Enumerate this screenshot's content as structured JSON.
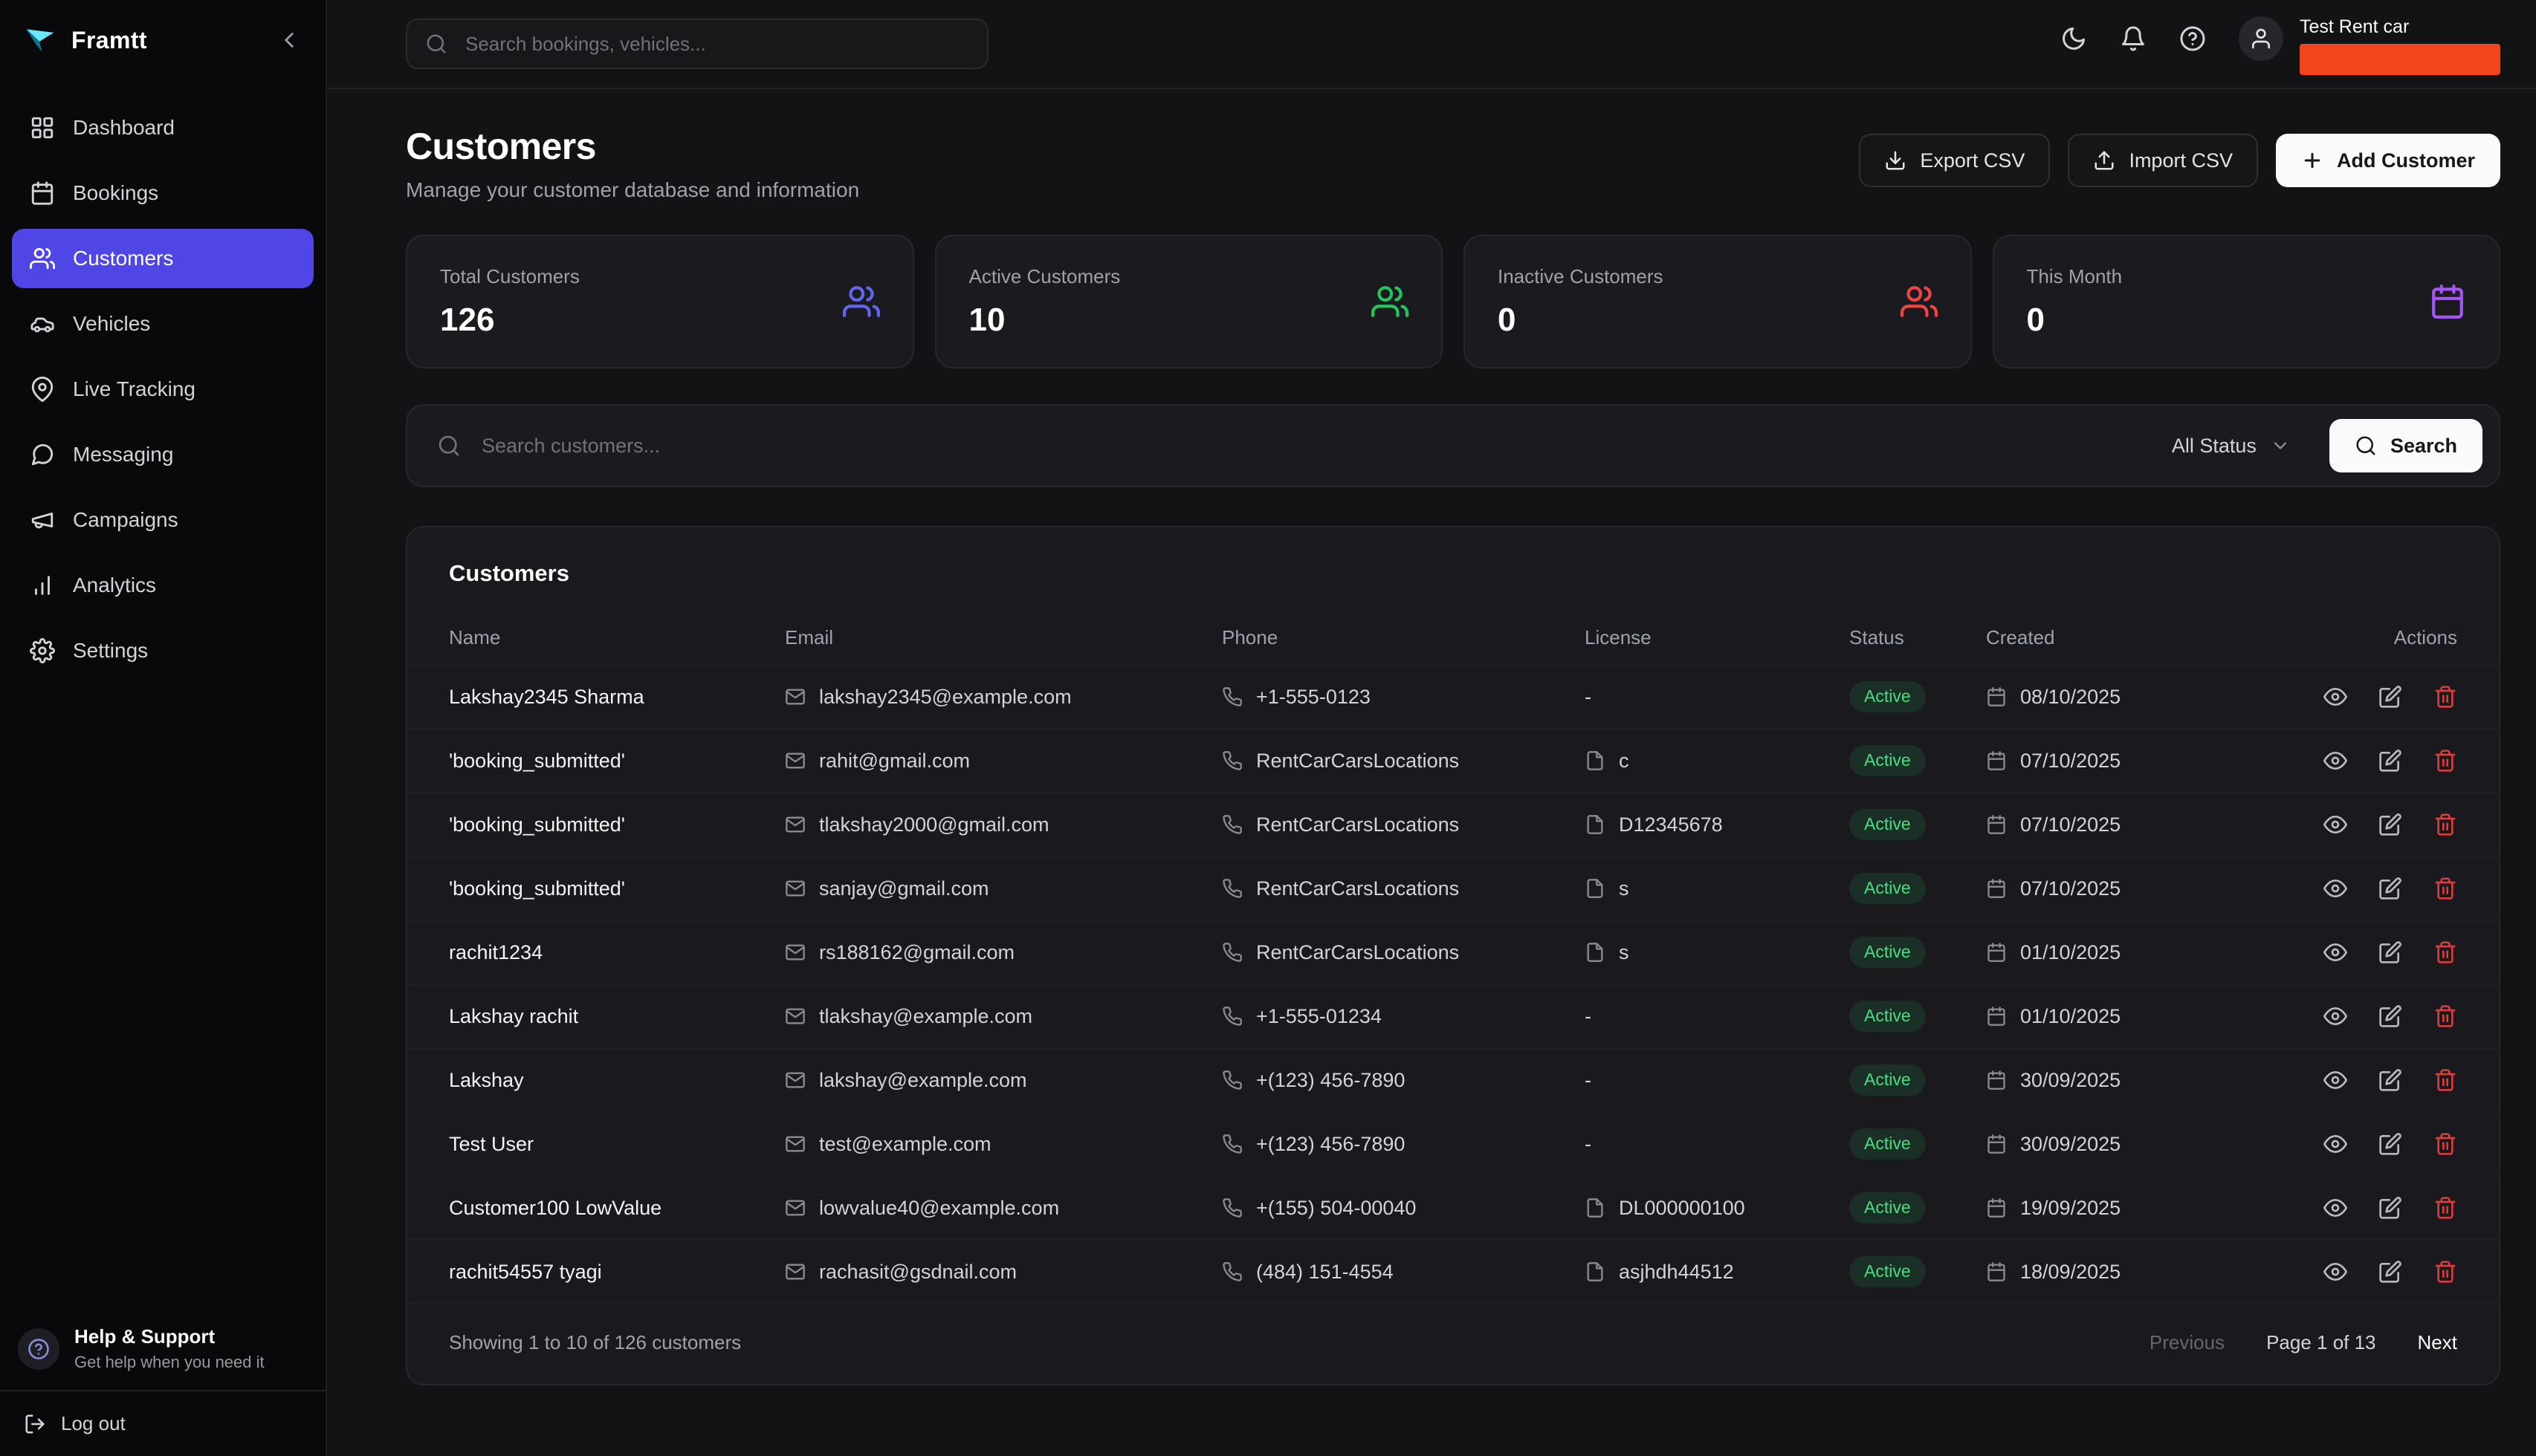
{
  "brand": {
    "name": "Framtt"
  },
  "sidebar": {
    "items": [
      {
        "label": "Dashboard",
        "icon": "dashboard-icon"
      },
      {
        "label": "Bookings",
        "icon": "calendar-icon"
      },
      {
        "label": "Customers",
        "icon": "users-icon",
        "active": true
      },
      {
        "label": "Vehicles",
        "icon": "car-icon"
      },
      {
        "label": "Live Tracking",
        "icon": "map-pin-icon"
      },
      {
        "label": "Messaging",
        "icon": "chat-icon"
      },
      {
        "label": "Campaigns",
        "icon": "megaphone-icon"
      },
      {
        "label": "Analytics",
        "icon": "bar-chart-icon"
      },
      {
        "label": "Settings",
        "icon": "gear-icon"
      }
    ],
    "help": {
      "title": "Help & Support",
      "subtitle": "Get help when you need it"
    },
    "logout_label": "Log out"
  },
  "topbar": {
    "search_placeholder": "Search bookings, vehicles...",
    "account_name": "Test Rent car"
  },
  "page": {
    "title": "Customers",
    "subtitle": "Manage your customer database and information",
    "export_csv_label": "Export CSV",
    "import_csv_label": "Import CSV",
    "add_customer_label": "Add Customer"
  },
  "stats": [
    {
      "label": "Total Customers",
      "value": "126",
      "icon": "users-icon",
      "color": "#6366f1"
    },
    {
      "label": "Active Customers",
      "value": "10",
      "icon": "users-icon",
      "color": "#22c55e"
    },
    {
      "label": "Inactive Customers",
      "value": "0",
      "icon": "users-icon",
      "color": "#ef4444"
    },
    {
      "label": "This Month",
      "value": "0",
      "icon": "calendar-icon",
      "color": "#a855f7"
    }
  ],
  "filter": {
    "search_placeholder": "Search customers...",
    "status_value": "All Status",
    "search_button_label": "Search"
  },
  "table": {
    "title": "Customers",
    "columns": [
      {
        "label": "Name"
      },
      {
        "label": "Email"
      },
      {
        "label": "Phone"
      },
      {
        "label": "License"
      },
      {
        "label": "Status"
      },
      {
        "label": "Created"
      },
      {
        "label": "Actions",
        "align": "right"
      }
    ],
    "rows": [
      {
        "name": "Lakshay2345 Sharma",
        "email": "lakshay2345@example.com",
        "phone": "+1-555-0123",
        "license": "-",
        "license_doc": false,
        "status": "Active",
        "created": "08/10/2025"
      },
      {
        "name": "'booking_submitted'",
        "email": "rahit@gmail.com",
        "phone": "RentCarCarsLocations",
        "license": "c",
        "license_doc": true,
        "status": "Active",
        "created": "07/10/2025"
      },
      {
        "name": "'booking_submitted'",
        "email": "tlakshay2000@gmail.com",
        "phone": "RentCarCarsLocations",
        "license": "D12345678",
        "license_doc": true,
        "status": "Active",
        "created": "07/10/2025"
      },
      {
        "name": "'booking_submitted'",
        "email": "sanjay@gmail.com",
        "phone": "RentCarCarsLocations",
        "license": "s",
        "license_doc": true,
        "status": "Active",
        "created": "07/10/2025"
      },
      {
        "name": "rachit1234",
        "email": "rs188162@gmail.com",
        "phone": "RentCarCarsLocations",
        "license": "s",
        "license_doc": true,
        "status": "Active",
        "created": "01/10/2025"
      },
      {
        "name": "Lakshay rachit",
        "email": "tlakshay@example.com",
        "phone": "+1-555-01234",
        "license": "-",
        "license_doc": false,
        "status": "Active",
        "created": "01/10/2025"
      },
      {
        "name": "Lakshay",
        "email": "lakshay@example.com",
        "phone": "+(123) 456-7890",
        "license": "-",
        "license_doc": false,
        "status": "Active",
        "created": "30/09/2025"
      },
      {
        "name": "Test User",
        "email": "test@example.com",
        "phone": "+(123) 456-7890",
        "license": "-",
        "license_doc": false,
        "status": "Active",
        "created": "30/09/2025"
      },
      {
        "name": "Customer100 LowValue",
        "email": "lowvalue40@example.com",
        "phone": "+(155) 504-00040",
        "license": "DL000000100",
        "license_doc": true,
        "status": "Active",
        "created": "19/09/2025"
      },
      {
        "name": "rachit54557 tyagi",
        "email": "rachasit@gsdnail.com",
        "phone": "(484) 151-4554",
        "license": "asjhdh44512",
        "license_doc": true,
        "status": "Active",
        "created": "18/09/2025"
      }
    ]
  },
  "pagination": {
    "summary": "Showing 1 to 10 of 126 customers",
    "previous_label": "Previous",
    "page_label": "Page 1 of 13",
    "next_label": "Next"
  },
  "colors": {
    "accent": "#4f46e5",
    "status_active": "#4ade80",
    "danger": "#ef4444",
    "account_badge": "#f2441d"
  }
}
